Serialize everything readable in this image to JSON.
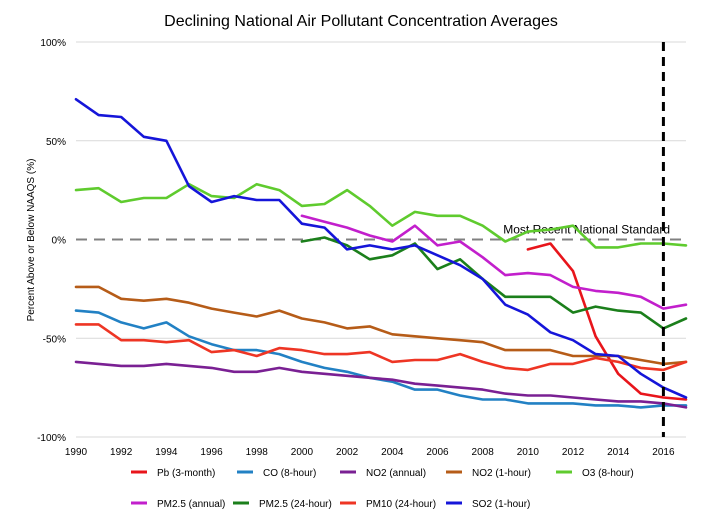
{
  "chart_data": {
    "type": "line",
    "title": "Declining National Air Pollutant Concentration Averages",
    "ylabel": "Percent Above or Below NAAQS (%)",
    "xlabel": "",
    "xlim": [
      1990,
      2017
    ],
    "ylim": [
      -100,
      100
    ],
    "x_ticks": [
      1990,
      1992,
      1994,
      1996,
      1998,
      2000,
      2002,
      2004,
      2006,
      2008,
      2010,
      2012,
      2014,
      2016
    ],
    "y_ticks": [
      100,
      50,
      0,
      -50,
      -100
    ],
    "y_tick_labels": [
      "100%",
      "50%",
      "0%",
      "-50%",
      "-100%"
    ],
    "grid": "horizontal",
    "legend_position": "bottom",
    "reference_line": {
      "y": 0,
      "label": "Most Recent National Standard",
      "color": "#808080",
      "style": "dashed"
    },
    "marker_line": {
      "x": 2016,
      "color": "#000000",
      "style": "dashed"
    },
    "series": [
      {
        "name": "Pb (3-month)",
        "color": "#e8151b",
        "x": [
          2010,
          2011,
          2012,
          2013,
          2014,
          2015,
          2016,
          2017
        ],
        "y": [
          -5,
          -2,
          -16,
          -49,
          -68,
          -78,
          -80,
          -81
        ]
      },
      {
        "name": "CO (8-hour)",
        "color": "#2281c4",
        "x": [
          1990,
          1991,
          1992,
          1993,
          1994,
          1995,
          1996,
          1997,
          1998,
          1999,
          2000,
          2001,
          2002,
          2003,
          2004,
          2005,
          2006,
          2007,
          2008,
          2009,
          2010,
          2011,
          2012,
          2013,
          2014,
          2015,
          2016,
          2017
        ],
        "y": [
          -36,
          -37,
          -42,
          -45,
          -42,
          -49,
          -53,
          -56,
          -56,
          -58,
          -62,
          -65,
          -67,
          -70,
          -72,
          -76,
          -76,
          -79,
          -81,
          -81,
          -83,
          -83,
          -83,
          -84,
          -84,
          -85,
          -84,
          -84
        ]
      },
      {
        "name": "NO2 (annual)",
        "color": "#7a2093",
        "x": [
          1990,
          1991,
          1992,
          1993,
          1994,
          1995,
          1996,
          1997,
          1998,
          1999,
          2000,
          2001,
          2002,
          2003,
          2004,
          2005,
          2006,
          2007,
          2008,
          2009,
          2010,
          2011,
          2012,
          2013,
          2014,
          2015,
          2016,
          2017
        ],
        "y": [
          -62,
          -63,
          -64,
          -64,
          -63,
          -64,
          -65,
          -67,
          -67,
          -65,
          -67,
          -68,
          -69,
          -70,
          -71,
          -73,
          -74,
          -75,
          -76,
          -78,
          -79,
          -79,
          -80,
          -81,
          -82,
          -82,
          -83,
          -85
        ]
      },
      {
        "name": "NO2 (1-hour)",
        "color": "#b65c18",
        "x": [
          1990,
          1991,
          1992,
          1993,
          1994,
          1995,
          1996,
          1997,
          1998,
          1999,
          2000,
          2001,
          2002,
          2003,
          2004,
          2005,
          2006,
          2007,
          2008,
          2009,
          2010,
          2011,
          2012,
          2013,
          2014,
          2015,
          2016,
          2017
        ],
        "y": [
          -24,
          -24,
          -30,
          -31,
          -30,
          -32,
          -35,
          -37,
          -39,
          -36,
          -40,
          -42,
          -45,
          -44,
          -48,
          -49,
          -50,
          -51,
          -52,
          -56,
          -56,
          -56,
          -59,
          -59,
          -59,
          -61,
          -63,
          -62
        ]
      },
      {
        "name": "O3 (8-hour)",
        "color": "#5fcb2e",
        "x": [
          1990,
          1991,
          1992,
          1993,
          1994,
          1995,
          1996,
          1997,
          1998,
          1999,
          2000,
          2001,
          2002,
          2003,
          2004,
          2005,
          2006,
          2007,
          2008,
          2009,
          2010,
          2011,
          2012,
          2013,
          2014,
          2015,
          2016,
          2017
        ],
        "y": [
          25,
          26,
          19,
          21,
          21,
          28,
          22,
          21,
          28,
          25,
          17,
          18,
          25,
          17,
          7,
          14,
          12,
          12,
          7,
          -1,
          4,
          5,
          7,
          -4,
          -4,
          -2,
          -2,
          -3
        ]
      },
      {
        "name": "PM2.5 (annual)",
        "color": "#c21fcc",
        "x": [
          2000,
          2001,
          2002,
          2003,
          2004,
          2005,
          2006,
          2007,
          2008,
          2009,
          2010,
          2011,
          2012,
          2013,
          2014,
          2015,
          2016,
          2017
        ],
        "y": [
          12,
          9,
          6,
          2,
          -1,
          7,
          -3,
          -1,
          -9,
          -18,
          -17,
          -18,
          -24,
          -26,
          -27,
          -29,
          -35,
          -33
        ]
      },
      {
        "name": "PM2.5 (24-hour)",
        "color": "#1b7f1b",
        "x": [
          2000,
          2001,
          2002,
          2003,
          2004,
          2005,
          2006,
          2007,
          2008,
          2009,
          2010,
          2011,
          2012,
          2013,
          2014,
          2015,
          2016,
          2017
        ],
        "y": [
          -1,
          1,
          -3,
          -10,
          -8,
          -2,
          -15,
          -10,
          -20,
          -29,
          -29,
          -29,
          -37,
          -34,
          -36,
          -37,
          -45,
          -40
        ]
      },
      {
        "name": "PM10 (24-hour)",
        "color": "#ee3524",
        "x": [
          1990,
          1991,
          1992,
          1993,
          1994,
          1995,
          1996,
          1997,
          1998,
          1999,
          2000,
          2001,
          2002,
          2003,
          2004,
          2005,
          2006,
          2007,
          2008,
          2009,
          2010,
          2011,
          2012,
          2013,
          2014,
          2015,
          2016,
          2017
        ],
        "y": [
          -43,
          -43,
          -51,
          -51,
          -52,
          -51,
          -57,
          -56,
          -59,
          -55,
          -56,
          -58,
          -58,
          -57,
          -62,
          -61,
          -61,
          -58,
          -62,
          -65,
          -66,
          -63,
          -63,
          -60,
          -62,
          -65,
          -66,
          -62
        ]
      },
      {
        "name": "SO2 (1-hour)",
        "color": "#1515d9",
        "x": [
          1990,
          1991,
          1992,
          1993,
          1994,
          1995,
          1996,
          1997,
          1998,
          1999,
          2000,
          2001,
          2002,
          2003,
          2004,
          2005,
          2006,
          2007,
          2008,
          2009,
          2010,
          2011,
          2012,
          2013,
          2014,
          2015,
          2016,
          2017
        ],
        "y": [
          71,
          63,
          62,
          52,
          50,
          27,
          19,
          22,
          20,
          20,
          8,
          6,
          -5,
          -3,
          -5,
          -3,
          -8,
          -13,
          -20,
          -33,
          -38,
          -47,
          -51,
          -58,
          -59,
          -68,
          -75,
          -80
        ]
      }
    ]
  }
}
